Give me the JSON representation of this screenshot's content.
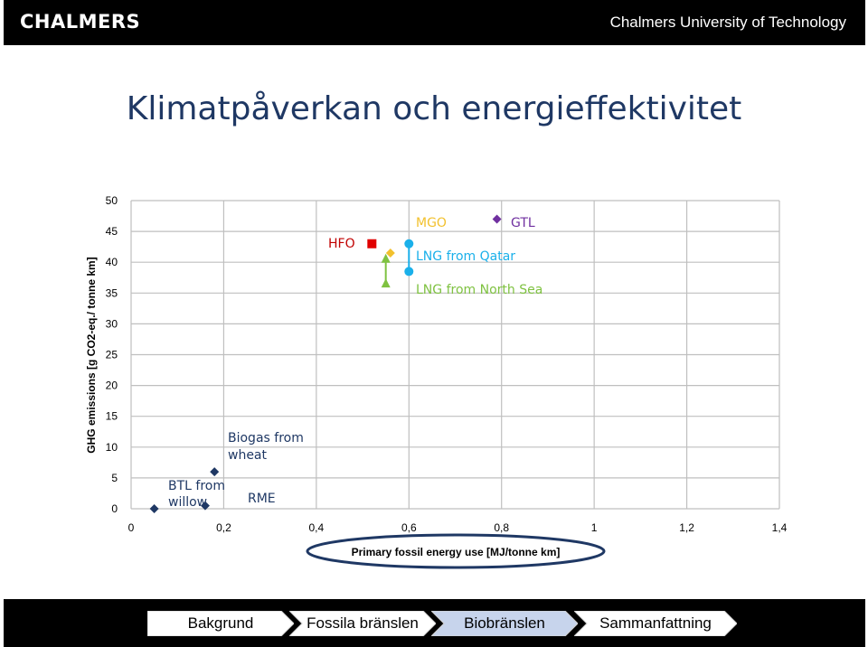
{
  "header": {
    "logo_text": "CHALMERS",
    "university": "Chalmers University of Technology"
  },
  "page_title": "Klimatpåverkan och energieffektivitet",
  "chart_data": {
    "type": "scatter",
    "xlabel": "Primary fossil energy use [MJ/tonne km]",
    "ylabel": "GHG emissions [g CO2-eq./ tonne km]",
    "xlim": [
      0,
      1.4
    ],
    "ylim": [
      0,
      50
    ],
    "x_ticks": [
      "0",
      "0,2",
      "0,4",
      "0,6",
      "0,8",
      "1",
      "1,2",
      "1,4"
    ],
    "y_ticks": [
      "0",
      "5",
      "10",
      "15",
      "20",
      "25",
      "30",
      "35",
      "40",
      "45",
      "50"
    ],
    "grid": true,
    "series": [
      {
        "name": "HFO",
        "marker": "square",
        "color": "#e00000",
        "points": [
          [
            0.52,
            43
          ]
        ]
      },
      {
        "name": "MGO",
        "marker": "diamond",
        "color": "#f2c12e",
        "points": [
          [
            0.56,
            41.5
          ]
        ]
      },
      {
        "name": "GTL",
        "marker": "diamond",
        "color": "#7030a0",
        "points": [
          [
            0.79,
            47
          ]
        ]
      },
      {
        "name": "LNG from Qatar",
        "marker": "circle",
        "color": "#1ab0ea",
        "points": [
          [
            0.6,
            43
          ]
        ]
      },
      {
        "name": "LNG from North Sea",
        "marker": "circle",
        "color": "#1ab0ea",
        "points": [
          [
            0.6,
            38.5
          ]
        ]
      },
      {
        "name": "",
        "marker": "triangle",
        "color": "#7fc241",
        "points": [
          [
            0.55,
            40.5
          ],
          [
            0.55,
            36.5
          ]
        ]
      },
      {
        "name": "Biogas from wheat",
        "marker": "diamond",
        "color": "#1f3864",
        "points": [
          [
            0.18,
            6
          ]
        ]
      },
      {
        "name": "RME",
        "marker": "diamond",
        "color": "#1f3864",
        "points": [
          [
            0.16,
            0.5
          ]
        ]
      },
      {
        "name": "BTL from willow",
        "marker": "diamond",
        "color": "#1f3864",
        "points": [
          [
            0.05,
            0
          ]
        ]
      }
    ],
    "labels": [
      {
        "text": "HFO",
        "color": "#c00000"
      },
      {
        "text": "MGO",
        "color": "#f2c12e"
      },
      {
        "text": "GTL",
        "color": "#7030a0"
      },
      {
        "text": "LNG from Qatar",
        "color": "#1ab0ea"
      },
      {
        "text": "LNG from North Sea",
        "color": "#7fc241"
      },
      {
        "text": "Biogas from",
        "color": "#1f3864"
      },
      {
        "text": "wheat",
        "color": "#1f3864"
      },
      {
        "text": "RME",
        "color": "#1f3864"
      },
      {
        "text": "BTL from",
        "color": "#1f3864"
      },
      {
        "text": "willow",
        "color": "#1f3864"
      }
    ]
  },
  "nav": [
    {
      "label": "Bakgrund",
      "active": false
    },
    {
      "label": "Fossila bränslen",
      "active": false
    },
    {
      "label": "Biobränslen",
      "active": true
    },
    {
      "label": "Sammanfattning",
      "active": false
    }
  ]
}
